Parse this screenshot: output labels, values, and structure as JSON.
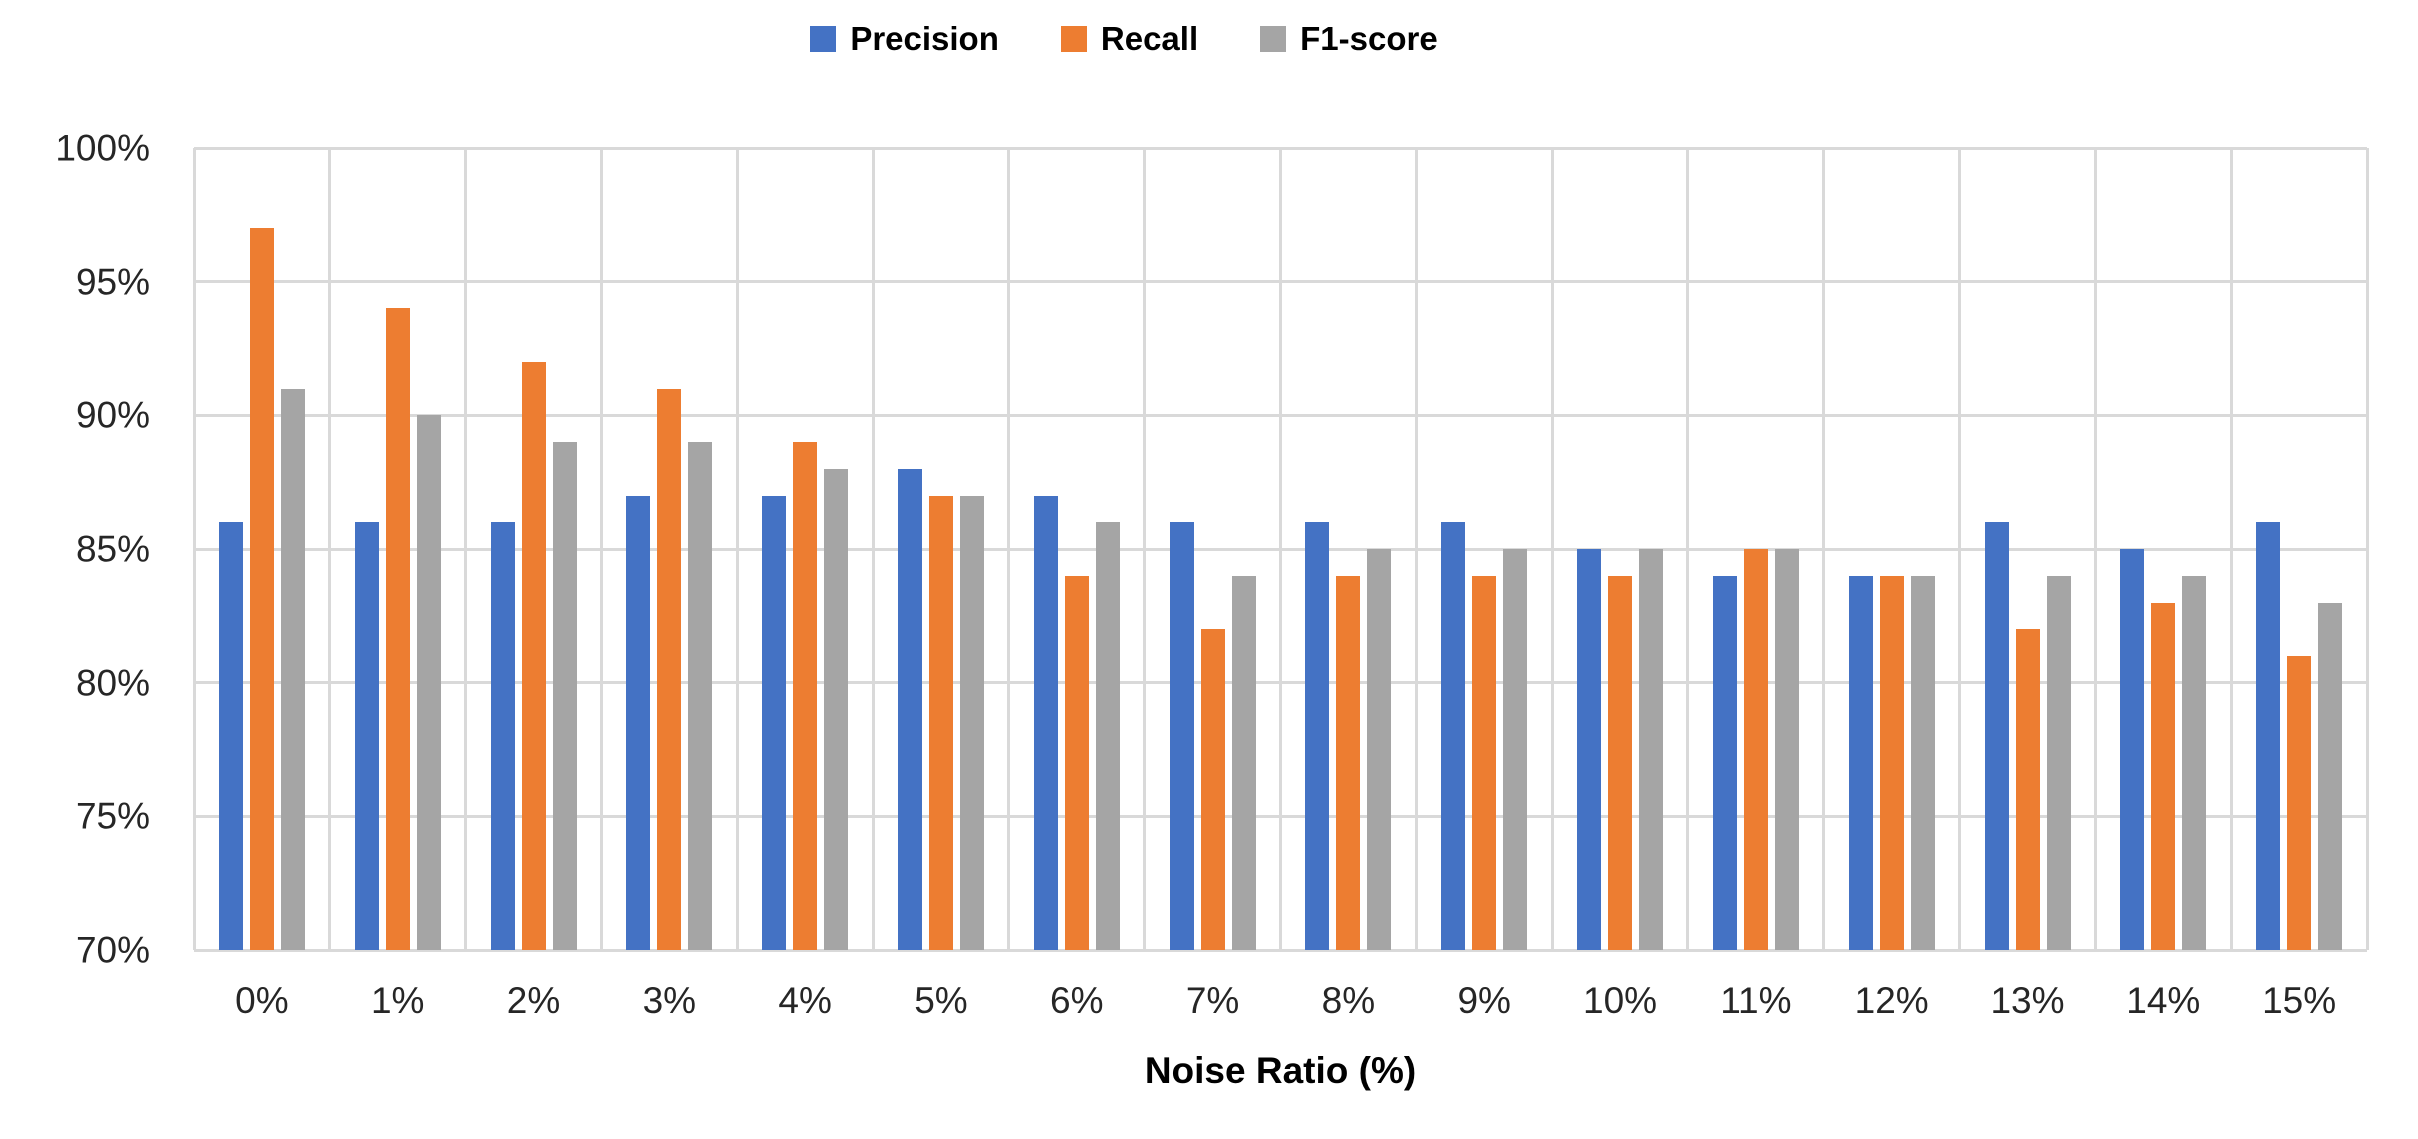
{
  "chart_data": {
    "type": "bar",
    "title": "",
    "categories": [
      "0%",
      "1%",
      "2%",
      "3%",
      "4%",
      "5%",
      "6%",
      "7%",
      "8%",
      "9%",
      "10%",
      "11%",
      "12%",
      "13%",
      "14%",
      "15%"
    ],
    "series": [
      {
        "name": "Precision",
        "color": "#4472C4",
        "values": [
          86,
          86,
          86,
          87,
          87,
          88,
          87,
          86,
          86,
          86,
          85,
          84,
          84,
          86,
          85,
          86
        ]
      },
      {
        "name": "Recall",
        "color": "#ED7D31",
        "values": [
          97,
          94,
          92,
          91,
          89,
          87,
          84,
          82,
          84,
          84,
          84,
          85,
          84,
          82,
          83,
          81
        ]
      },
      {
        "name": "F1-score",
        "color": "#A5A5A5",
        "values": [
          91,
          90,
          89,
          89,
          88,
          87,
          86,
          84,
          85,
          85,
          85,
          85,
          84,
          84,
          84,
          83
        ]
      }
    ],
    "xlabel": "Noise Ratio (%)",
    "ylabel": "",
    "ylim": [
      70,
      100
    ],
    "ytick_step": 5,
    "ytick_labels_top_to_bottom": [
      "100%",
      "95%",
      "90%",
      "85%",
      "80%",
      "75%",
      "70%"
    ],
    "unit": "%",
    "legend_position": "top-center",
    "grid": true,
    "gridline_color": "#D9D9D9",
    "background_color": "#FFFFFF",
    "tick_text_color": "#262626",
    "label_text_color": "#000000"
  }
}
